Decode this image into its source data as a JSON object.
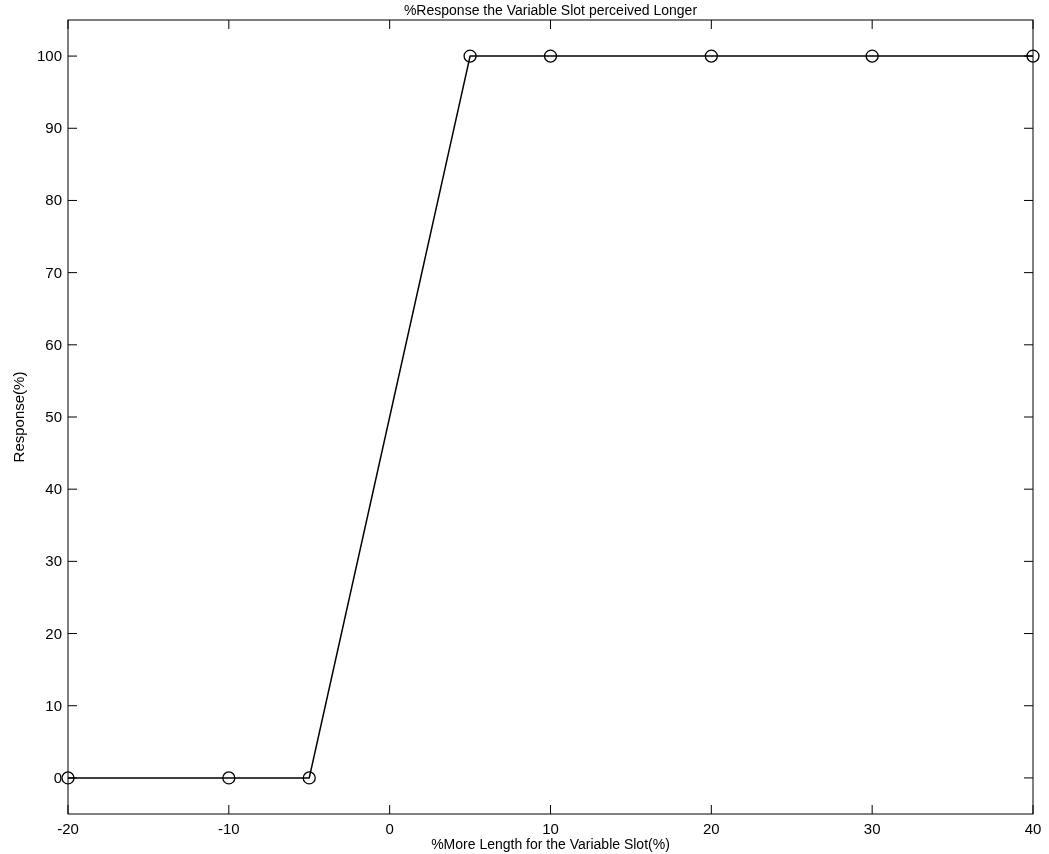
{
  "chart_data": {
    "type": "line",
    "title": "%Response the Variable Slot perceived Longer",
    "xlabel": "%More Length for the Variable Slot(%)",
    "ylabel": "Response(%)",
    "x": [
      -20,
      -10,
      -5,
      5,
      10,
      20,
      30,
      40
    ],
    "series": [
      {
        "color": "#000000",
        "values": [
          0,
          0,
          0,
          100,
          100,
          100,
          100,
          100
        ]
      }
    ],
    "xlim": [
      -20,
      40
    ],
    "xticks": [
      -20,
      -10,
      0,
      10,
      20,
      30,
      40
    ],
    "ylim": [
      -5,
      105
    ],
    "yticks": [
      0,
      10,
      20,
      30,
      40,
      50,
      60,
      70,
      80,
      90,
      100
    ],
    "marker": "circle",
    "line_style": "solid",
    "grid": false
  }
}
